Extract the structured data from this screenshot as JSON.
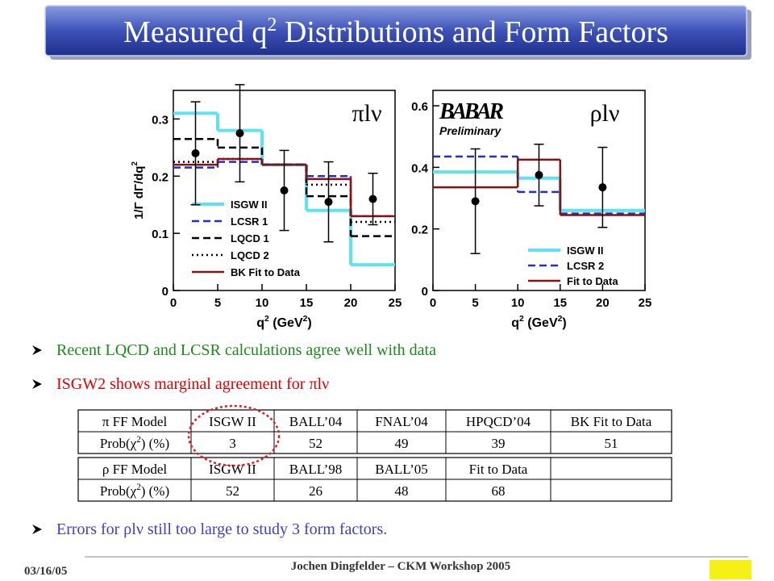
{
  "title": {
    "pre": "Measured q",
    "sup": "2",
    "post": " Distributions and Form Factors"
  },
  "plots": [
    {
      "channel": "πlν",
      "y_label": [
        "1/Γ dΓ/dq",
        "2"
      ],
      "x_label": [
        "q",
        "2",
        " (GeV",
        "2",
        ")"
      ],
      "xlim": [
        0,
        25
      ],
      "ylim": [
        0,
        0.35
      ],
      "xticks": [
        0,
        5,
        10,
        15,
        20,
        25
      ],
      "yticks": [
        0,
        0.1,
        0.2,
        0.3
      ],
      "bins": [
        0,
        5,
        10,
        15,
        20,
        25
      ],
      "series": [
        {
          "name": "ISGW II",
          "color": "#5fe3f2",
          "style": "solid",
          "values": [
            0.31,
            0.28,
            0.22,
            0.14,
            0.045
          ]
        },
        {
          "name": "LCSR 1",
          "color": "#1f2fd0",
          "style": "dashed",
          "values": [
            0.215,
            0.225,
            0.22,
            0.2,
            0.13
          ]
        },
        {
          "name": "LQCD 1",
          "color": "#000000",
          "style": "dashed",
          "values": [
            0.265,
            0.25,
            0.22,
            0.165,
            0.095
          ]
        },
        {
          "name": "LQCD 2",
          "color": "#000000",
          "style": "dotted",
          "values": [
            0.225,
            0.23,
            0.22,
            0.185,
            0.12
          ]
        },
        {
          "name": "BK Fit to Data",
          "color": "#8b1010",
          "style": "solid",
          "values": [
            0.22,
            0.23,
            0.22,
            0.195,
            0.13
          ]
        }
      ],
      "data": {
        "x": [
          2.5,
          7.5,
          12.5,
          17.5,
          22.5
        ],
        "values": [
          0.24,
          0.275,
          0.175,
          0.155,
          0.16
        ],
        "errors": [
          0.09,
          0.085,
          0.07,
          0.07,
          0.045
        ]
      }
    },
    {
      "channel": "ρlν",
      "logo": {
        "name": "BABAR",
        "note": "Preliminary"
      },
      "x_label": [
        "q",
        "2",
        " (GeV",
        "2",
        ")"
      ],
      "xlim": [
        0,
        25
      ],
      "ylim": [
        0,
        0.65
      ],
      "xticks": [
        0,
        5,
        10,
        15,
        20,
        25
      ],
      "yticks": [
        0,
        0.2,
        0.4,
        0.6
      ],
      "bins": [
        0,
        10,
        15,
        25
      ],
      "series": [
        {
          "name": "ISGW II",
          "color": "#5fe3f2",
          "style": "solid",
          "values": [
            0.385,
            0.365,
            0.26
          ]
        },
        {
          "name": "LCSR 2",
          "color": "#1f2fd0",
          "style": "dashed",
          "values": [
            0.435,
            0.32,
            0.25
          ]
        },
        {
          "name": "Fit to Data",
          "color": "#8b1010",
          "style": "solid",
          "values": [
            0.335,
            0.425,
            0.245
          ]
        }
      ],
      "data": {
        "x": [
          5,
          12.5,
          20
        ],
        "values": [
          0.29,
          0.375,
          0.335
        ],
        "errors": [
          0.17,
          0.1,
          0.13
        ]
      }
    }
  ],
  "bullets": [
    {
      "text": "Recent LQCD and LCSR calculations agree well with data",
      "color": "#1a8a1a"
    },
    {
      "text": "ISGW2 shows marginal agreement for πlν",
      "color": "#e00000"
    },
    {
      "text": "Errors for ρlν still too large to study 3 form factors.",
      "color": "#4040c0"
    }
  ],
  "tables": [
    {
      "rows": [
        [
          [
            "π FF Model"
          ],
          [
            "ISGW II"
          ],
          [
            "BALL’04"
          ],
          [
            "FNAL’04"
          ],
          [
            "HPQCD’04"
          ],
          [
            "BK Fit to Data"
          ]
        ],
        [
          [
            "Prob(χ",
            "2",
            ") (%)"
          ],
          [
            "3"
          ],
          [
            "52"
          ],
          [
            "49"
          ],
          [
            "39"
          ],
          [
            "51"
          ]
        ]
      ]
    },
    {
      "rows": [
        [
          [
            "ρ FF Model"
          ],
          [
            "ISGW II"
          ],
          [
            "BALL’98"
          ],
          [
            "BALL’05"
          ],
          [
            "Fit to Data"
          ]
        ],
        [
          [
            "Prob(χ",
            "2",
            ") (%)"
          ],
          [
            "52"
          ],
          [
            "26"
          ],
          [
            "48"
          ],
          [
            "68"
          ]
        ]
      ]
    }
  ],
  "footer": {
    "date": "03/16/05",
    "author": "Jochen Dingfelder – CKM Workshop 2005"
  }
}
